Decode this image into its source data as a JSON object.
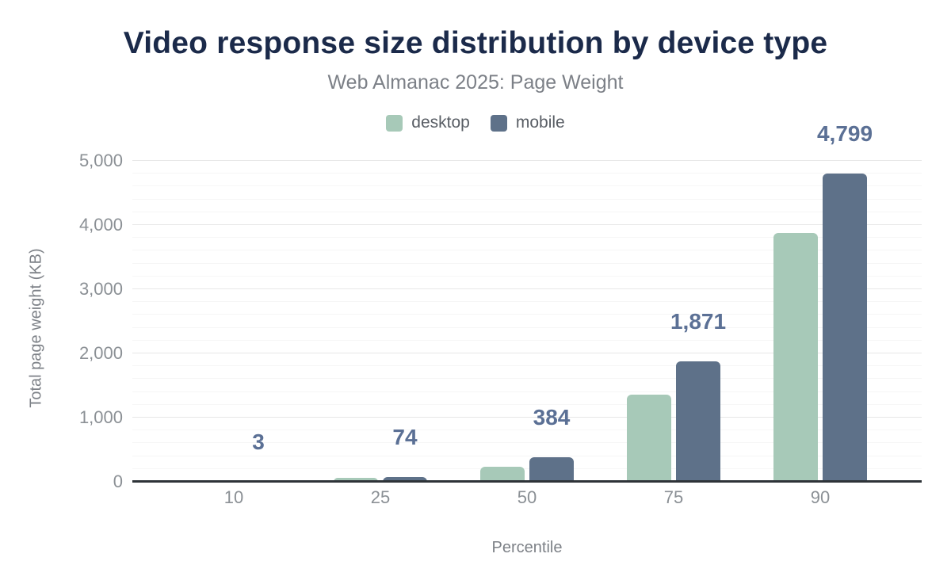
{
  "chart_data": {
    "type": "bar",
    "title": "Video response size distribution by device type",
    "subtitle": "Web Almanac 2025: Page Weight",
    "xlabel": "Percentile",
    "ylabel": "Total page weight (KB)",
    "categories": [
      "10",
      "25",
      "50",
      "75",
      "90"
    ],
    "series": [
      {
        "name": "desktop",
        "color": "#a7c9b8",
        "values": [
          2,
          60,
          240,
          1355,
          3875
        ],
        "values_estimated_from_pixels": true
      },
      {
        "name": "mobile",
        "color": "#5e7189",
        "values": [
          3,
          74,
          384,
          1871,
          4799
        ],
        "data_labels": [
          "3",
          "74",
          "384",
          "1,871",
          "4,799"
        ]
      }
    ],
    "ylim": [
      0,
      5000
    ],
    "y_tick_values": [
      0,
      1000,
      2000,
      3000,
      4000,
      5000
    ],
    "y_tick_labels": [
      "0",
      "1,000",
      "2,000",
      "3,000",
      "4,000",
      "5,000"
    ],
    "grid": {
      "on": true,
      "major_step": 1000,
      "minor_step": 200,
      "major_color": "#e7e7e7",
      "minor_color": "#f6f6f6"
    },
    "legend_position": "top-center",
    "colors": {
      "title": "#1b2a4a",
      "subtitle": "#7c8087",
      "legend_text": "#585d64",
      "data_label": "#5b7095",
      "tick_label": "#8b9095",
      "axis_title": "#7d8187",
      "axis_line": "#2e3338",
      "background": "#ffffff"
    }
  }
}
